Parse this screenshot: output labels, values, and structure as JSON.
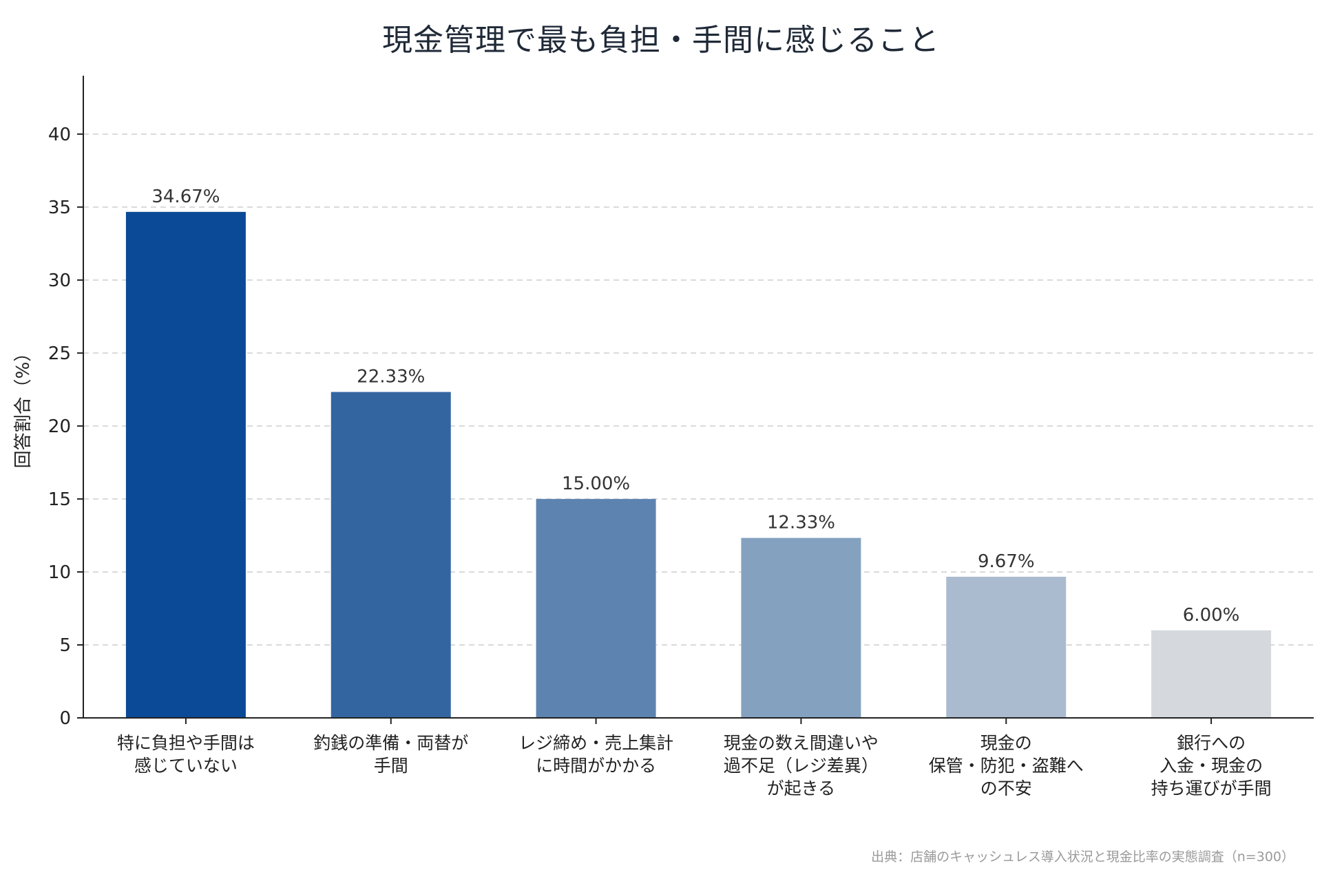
{
  "chart_data": {
    "type": "bar",
    "title": "現金管理で最も負担・手間に感じること",
    "ylabel": "回答割合（%）",
    "ylim": [
      0,
      44
    ],
    "yticks": [
      0,
      5,
      10,
      15,
      20,
      25,
      30,
      35,
      40
    ],
    "grid": true,
    "categories": [
      [
        "特に負担や手間は",
        "感じていない"
      ],
      [
        "釣銭の準備・両替が",
        "手間"
      ],
      [
        "レジ締め・売上集計",
        "に時間がかかる"
      ],
      [
        "現金の数え間違いや",
        "過不足（レジ差異）",
        "が起きる"
      ],
      [
        "現金の",
        "保管・防犯・盗難へ",
        "の不安"
      ],
      [
        "銀行への",
        "入金・現金の",
        "持ち運びが手間"
      ]
    ],
    "values": [
      34.67,
      22.33,
      15.0,
      12.33,
      9.67,
      6.0
    ],
    "value_labels": [
      "34.67%",
      "22.33%",
      "15.00%",
      "12.33%",
      "9.67%",
      "6.00%"
    ],
    "colors": [
      "#0b4a96",
      "#3366a1",
      "#5d84b1",
      "#84a1c0",
      "#abbbcf",
      "#d5d9de"
    ]
  },
  "source": "出典：店舗のキャッシュレス導入状況と現金比率の実態調査（n=300）"
}
